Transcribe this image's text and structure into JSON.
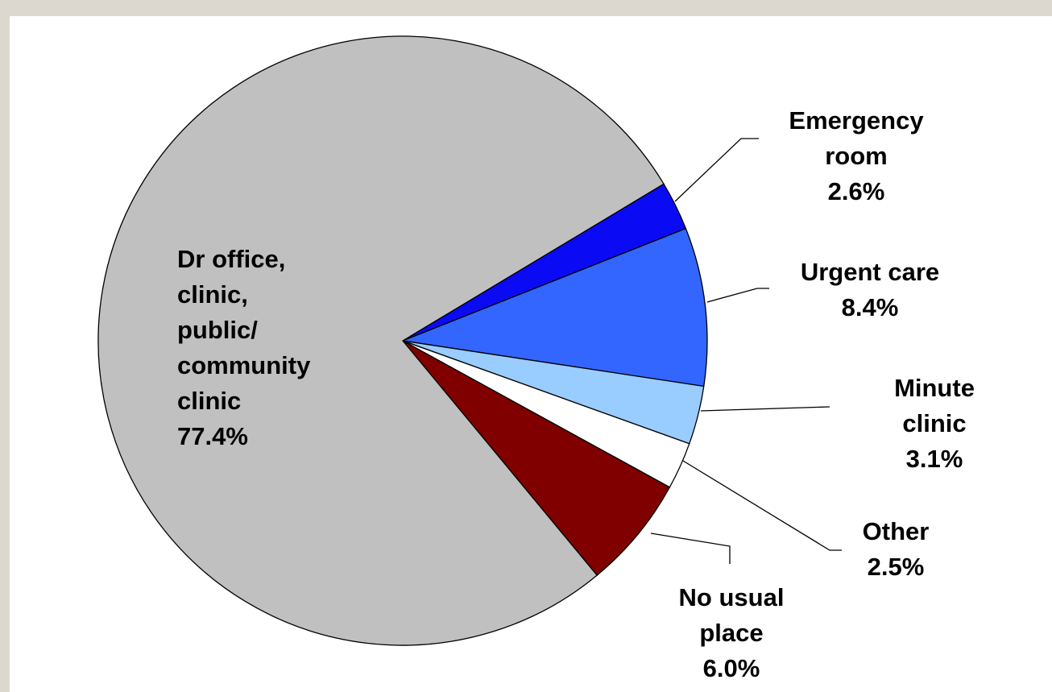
{
  "chart_data": {
    "type": "pie",
    "categories": [
      "Emergency\nroom",
      "Urgent care",
      "Minute clinic",
      "Other",
      "No usual\nplace",
      "Dr office,\nclinic,\npublic/\ncommunity\nclinic"
    ],
    "values": [
      2.6,
      8.4,
      3.1,
      2.5,
      6.0,
      77.4
    ],
    "value_labels": [
      "2.6%",
      "8.4%",
      "3.1%",
      "2.5%",
      "6.0%",
      "77.4%"
    ],
    "colors": [
      "#0a0af5",
      "#3366ff",
      "#99ccff",
      "#ffffff",
      "#800000",
      "#c0c0c0"
    ]
  }
}
